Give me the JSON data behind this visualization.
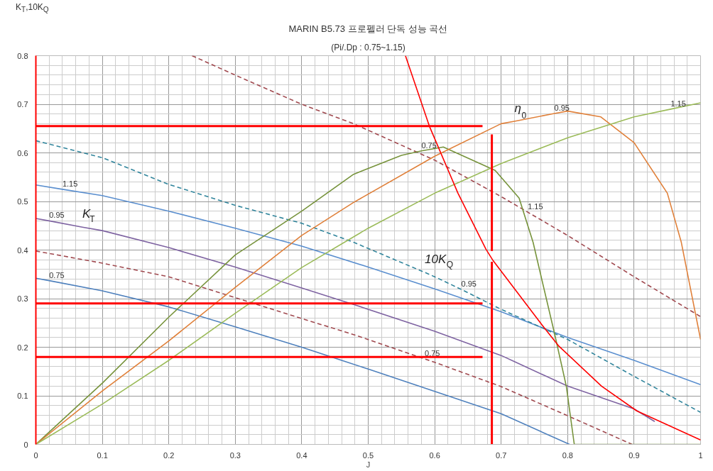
{
  "chart_data": {
    "type": "line",
    "title": "MARIN B5.73 프로펠러 단독 성능 곡선",
    "subtitle": "(Pi/.Dp : 0.75~1.15)",
    "xlabel": "J",
    "ylabel": "K$_{T}$,10K$_{Q}$",
    "xlim": [
      0,
      1
    ],
    "ylim": [
      0,
      0.8
    ],
    "xticks": [
      0,
      0.1,
      0.2,
      0.3,
      0.4,
      0.5,
      0.6,
      0.7,
      0.8,
      0.9,
      1
    ],
    "yticks": [
      0,
      0.1,
      0.2,
      0.3,
      0.4,
      0.5,
      0.6,
      0.7,
      0.8
    ],
    "grid": true,
    "marker": "none",
    "series": [
      {
        "color": "#4f81bd",
        "x": [
          0,
          0.02,
          0.1,
          0.2,
          0.3,
          0.4,
          0.5,
          0.6,
          0.7,
          0.803
        ],
        "values": [
          0.342,
          0.337,
          0.316,
          0.283,
          0.242,
          0.2,
          0.155,
          0.109,
          0.063,
          0
        ]
      },
      {
        "color": "#7f64a2",
        "x": [
          0,
          0.02,
          0.07,
          0.1,
          0.2,
          0.3,
          0.4,
          0.478,
          0.6,
          0.7,
          0.8,
          0.9,
          0.931
        ],
        "values": [
          0.465,
          0.46,
          0.447,
          0.44,
          0.405,
          0.365,
          0.322,
          0.288,
          0.233,
          0.183,
          0.12,
          0.073,
          0.047
        ]
      },
      {
        "color": "#5b8fcf",
        "x": [
          0,
          0.04,
          0.1,
          0.2,
          0.3,
          0.4,
          0.5,
          0.6,
          0.7,
          0.8,
          0.9,
          1.0
        ],
        "values": [
          0.534,
          0.525,
          0.512,
          0.48,
          0.445,
          0.408,
          0.365,
          0.32,
          0.273,
          0.22,
          0.173,
          0.123
        ]
      },
      {
        "color": "#a0494f",
        "line_style": "dashed",
        "x": [
          0,
          0.1,
          0.2,
          0.3,
          0.4,
          0.478,
          0.585,
          0.6,
          0.7,
          0.8,
          0.897
        ],
        "values": [
          0.398,
          0.373,
          0.345,
          0.302,
          0.259,
          0.226,
          0.176,
          0.169,
          0.119,
          0.059,
          0
        ]
      },
      {
        "color": "#31859c",
        "line_style": "dashed",
        "x": [
          0,
          0.1,
          0.2,
          0.3,
          0.4,
          0.478,
          0.585,
          0.6,
          0.64,
          0.7,
          0.8,
          0.9,
          1.0
        ],
        "values": [
          0.625,
          0.59,
          0.535,
          0.492,
          0.455,
          0.416,
          0.354,
          0.345,
          0.319,
          0.278,
          0.216,
          0.14,
          0.066
        ]
      },
      {
        "color": "#a0494f",
        "line_style": "dashed",
        "x": [
          0.235,
          0.3,
          0.4,
          0.478,
          0.6,
          0.7,
          0.74,
          0.8,
          0.9,
          1.0
        ],
        "values": [
          0.8,
          0.76,
          0.7,
          0.66,
          0.585,
          0.51,
          0.478,
          0.43,
          0.345,
          0.263
        ]
      },
      {
        "color": "#77933c",
        "x": [
          0,
          0.1,
          0.2,
          0.3,
          0.4,
          0.478,
          0.55,
          0.58,
          0.613,
          0.691,
          0.727,
          0.748,
          0.78,
          0.798,
          0.81,
          1.0
        ],
        "values": [
          0,
          0.126,
          0.262,
          0.39,
          0.48,
          0.556,
          0.595,
          0.604,
          0.612,
          0.564,
          0.507,
          0.416,
          0.23,
          0.12,
          0,
          0
        ]
      },
      {
        "color": "#e0803a",
        "x": [
          0,
          0.1,
          0.2,
          0.3,
          0.4,
          0.478,
          0.6,
          0.7,
          0.72,
          0.78,
          0.8,
          0.85,
          0.9,
          0.95,
          0.971,
          1.0
        ],
        "values": [
          0,
          0.11,
          0.213,
          0.323,
          0.43,
          0.498,
          0.593,
          0.66,
          0.665,
          0.681,
          0.686,
          0.674,
          0.621,
          0.517,
          0.416,
          0.216
        ]
      },
      {
        "color": "#9bbb59",
        "x": [
          0,
          0.1,
          0.2,
          0.3,
          0.4,
          0.5,
          0.6,
          0.7,
          0.8,
          0.9,
          0.955,
          1.0
        ],
        "values": [
          0,
          0.083,
          0.173,
          0.27,
          0.364,
          0.445,
          0.517,
          0.578,
          0.631,
          0.674,
          0.69,
          0.703
        ]
      },
      {
        "color": "#ff0000",
        "x": [
          0.556,
          0.592,
          0.635,
          0.677,
          0.688,
          0.762,
          0.787,
          0.851,
          0.904,
          1.0
        ],
        "values": [
          0.8,
          0.655,
          0.517,
          0.402,
          0.378,
          0.245,
          0.202,
          0.12,
          0.069,
          0.009
        ]
      },
      {
        "color": "#ff0000",
        "x": [
          0.672,
          0
        ],
        "values": [
          0.655,
          0.655
        ]
      },
      {
        "color": "#ff0000",
        "x": [
          0.672,
          0
        ],
        "values": [
          0.29,
          0.29
        ]
      },
      {
        "color": "#ff0000",
        "x": [
          0.672,
          0
        ],
        "values": [
          0.18,
          0.18
        ]
      },
      {
        "color": "#ff0000",
        "x": [
          0.686,
          0.686
        ],
        "values": [
          0,
          0.376
        ]
      },
      {
        "color": "#ff0000",
        "x": [
          0.686,
          0.686
        ],
        "values": [
          0.398,
          0.638
        ]
      }
    ],
    "annotations": [
      {
        "text": "1.15",
        "x": 0.04,
        "y": 0.525
      },
      {
        "text": "0.95",
        "x": 0.02,
        "y": 0.46
      },
      {
        "text": "K$_{T}$",
        "x": 0.07,
        "y": 0.447
      },
      {
        "text": "0.75",
        "x": 0.02,
        "y": 0.337
      },
      {
        "text": "10K$_{Q}$",
        "x": 0.585,
        "y": 0.354
      },
      {
        "text": "0.95",
        "x": 0.64,
        "y": 0.319
      },
      {
        "text": "0.75",
        "x": 0.585,
        "y": 0.176
      },
      {
        "text": "1.15",
        "x": 0.74,
        "y": 0.478
      },
      {
        "text": "η$_{0}$",
        "x": 0.72,
        "y": 0.665
      },
      {
        "text": "0.95",
        "x": 0.78,
        "y": 0.681
      },
      {
        "text": "0.75",
        "x": 0.58,
        "y": 0.604
      },
      {
        "text": "1.15",
        "x": 0.955,
        "y": 0.69
      }
    ]
  }
}
